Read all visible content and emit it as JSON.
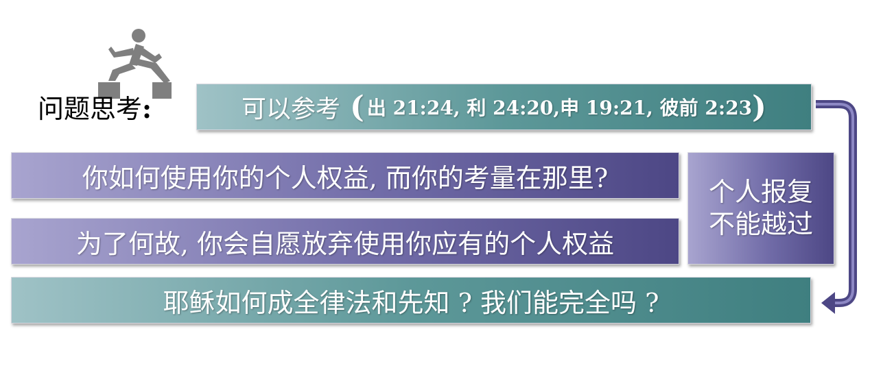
{
  "title": {
    "text": "问题思考",
    "colon": ":"
  },
  "reference": {
    "lead": "可以参考",
    "open_paren": "(",
    "detail": "出 21:24, 利 24:20,申 19:21, 彼前 2:23",
    "close_paren": ")"
  },
  "questions": [
    "你如何使用你的个人权益, 而你的考量在那里?",
    "为了何故, 你会自愿放弃使用你应有的个人权益",
    "耶稣如何成全律法和先知 ? 我们能完全吗 ?"
  ],
  "side_note": {
    "line1": "个人报复",
    "line2": "不能越过"
  },
  "colors": {
    "teal_light": "#9fc2c6",
    "teal_dark": "#3f7f80",
    "purple_light": "#a8a4cf",
    "purple_dark": "#4d4785",
    "arrow": "#4d4785",
    "runner": "#7f7f7f"
  }
}
